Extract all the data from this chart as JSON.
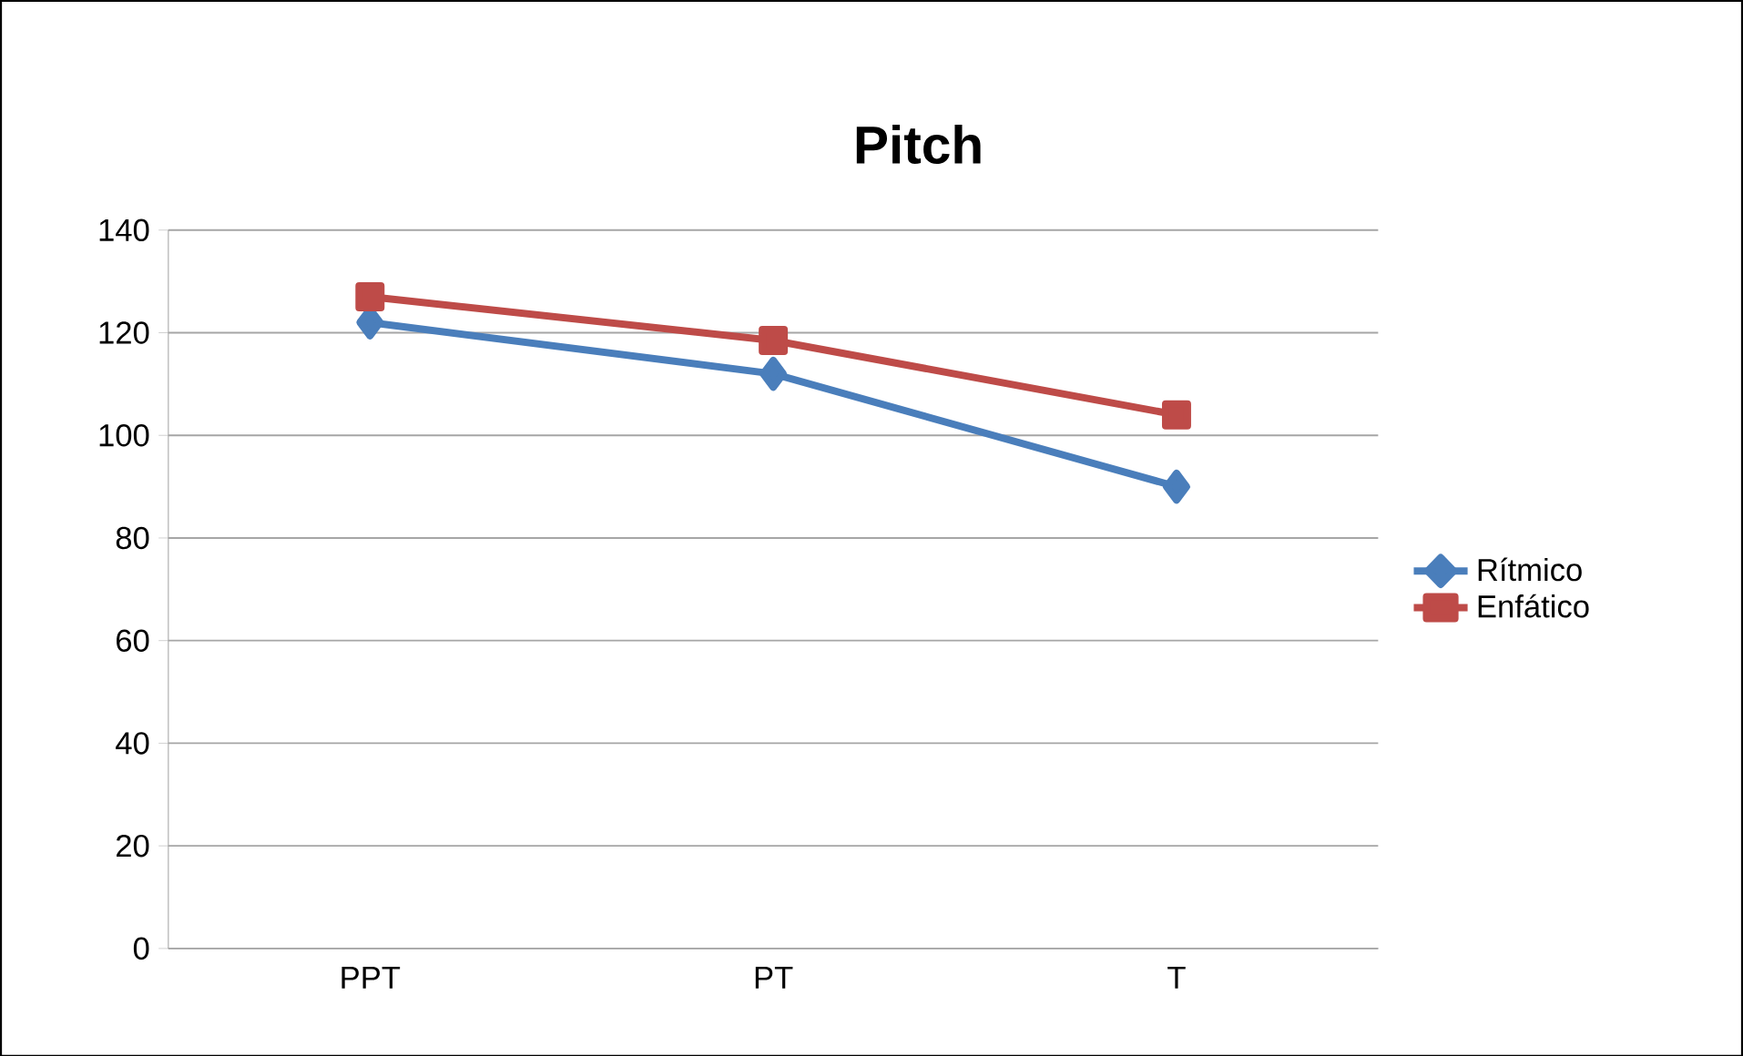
{
  "chart_data": {
    "type": "line",
    "title": "Pitch",
    "categories": [
      "PPT",
      "PT",
      "T"
    ],
    "series": [
      {
        "name": "Rítmico",
        "color": "#4a7ebb",
        "marker": "diamond",
        "values": [
          122,
          112,
          90
        ]
      },
      {
        "name": "Enfático",
        "color": "#be4b48",
        "marker": "square",
        "values": [
          127,
          118.5,
          104
        ]
      }
    ],
    "ylim": [
      0,
      140
    ],
    "yticks": [
      0,
      20,
      40,
      60,
      80,
      100,
      120,
      140
    ],
    "grid": "y",
    "legend": "right",
    "line_style": "solid"
  }
}
